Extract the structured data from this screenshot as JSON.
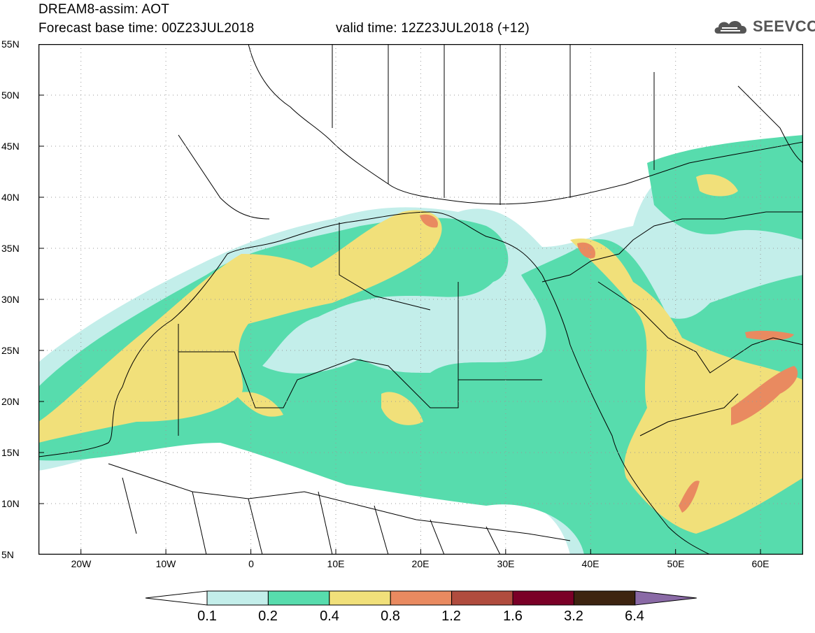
{
  "header": {
    "line1": "DREAM8-assim: AOT",
    "line2": "Forecast base time: 00Z23JUL2018",
    "valid": "valid time: 12Z23JUL2018 (+12)",
    "logo": "SEEVCCC"
  },
  "axes": {
    "lat_ticks": [
      "55N",
      "50N",
      "45N",
      "40N",
      "35N",
      "30N",
      "25N",
      "20N",
      "15N",
      "10N",
      "5N"
    ],
    "lon_ticks": [
      "20W",
      "10W",
      "0",
      "10E",
      "20E",
      "30E",
      "40E",
      "50E",
      "60E"
    ],
    "lat_range": [
      5,
      55
    ],
    "lon_range": [
      -25,
      65
    ]
  },
  "legend": {
    "thresholds": [
      "0.1",
      "0.2",
      "0.4",
      "0.8",
      "1.2",
      "1.6",
      "3.2",
      "6.4"
    ],
    "colors": [
      "#ffffff",
      "#c3eeea",
      "#57dcad",
      "#f1e07a",
      "#e98a60",
      "#b04c3e",
      "#7a0027",
      "#3d2410",
      "#8a6aa6"
    ]
  }
}
